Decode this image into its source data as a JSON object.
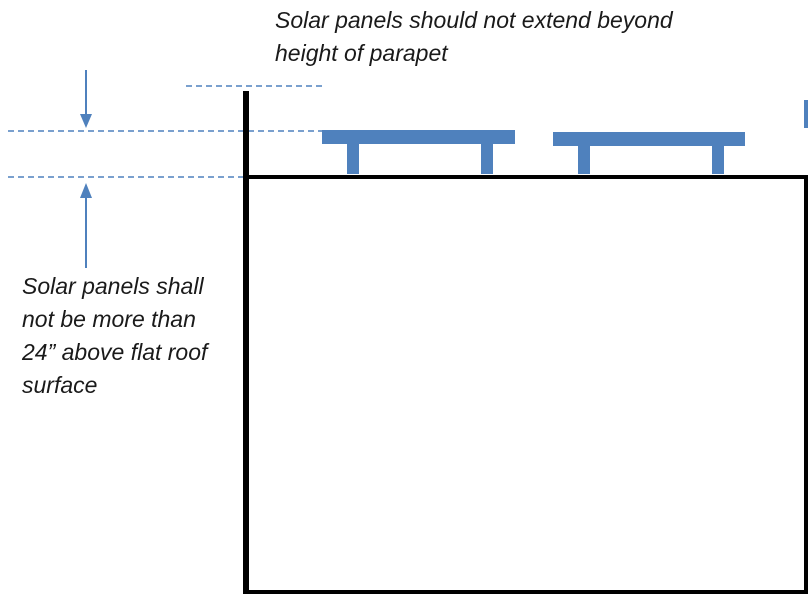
{
  "notes": {
    "parapet_height_note": "Solar panels should not extend beyond height of parapet",
    "max_height_note": "Solar panels shall not be more than 24” above flat roof surface"
  },
  "colors": {
    "panel": "#4f81bd",
    "dimension_line": "#4f81bd",
    "building_outline": "#000000",
    "text": "#1a1a1a"
  }
}
